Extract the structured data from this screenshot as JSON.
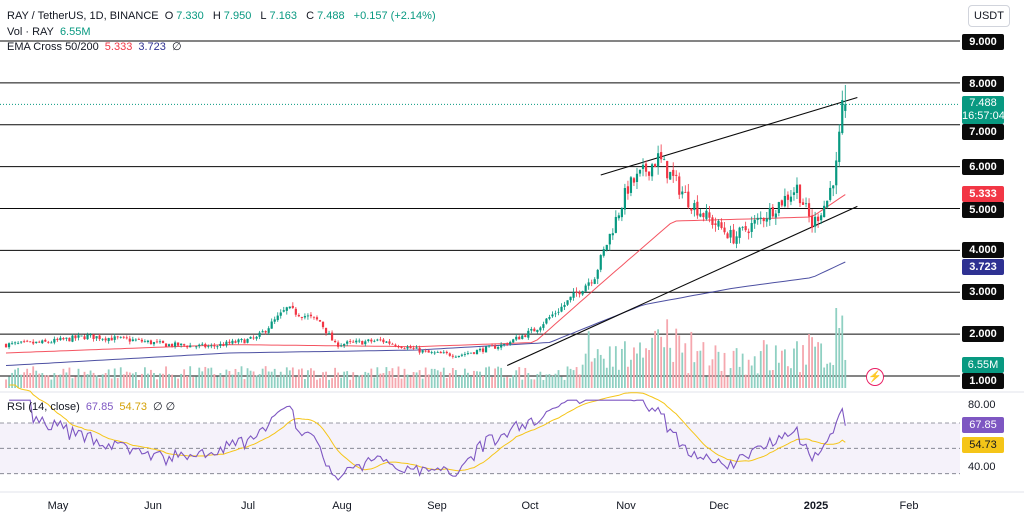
{
  "header": {
    "symbol": "RAY / TetherUS, 1D, BINANCE",
    "open_label": "O",
    "open": "7.330",
    "high_label": "H",
    "high": "7.950",
    "low_label": "L",
    "low": "7.163",
    "close_label": "C",
    "close": "7.488",
    "change": "+0.157 (+2.14%)",
    "vol_label": "Vol · RAY",
    "vol_value": "6.55M",
    "ema_label": "EMA Cross 50/200",
    "ema50": "5.333",
    "ema200": "3.723",
    "ema_extra": "∅"
  },
  "currency_button": "USDT",
  "price_axis": {
    "levels": [
      "9.000",
      "8.000",
      "7.000",
      "6.000",
      "5.000",
      "4.000",
      "3.000",
      "2.000",
      "1.000"
    ],
    "last_price": "7.488",
    "countdown": "16:57:04",
    "ema50_label": "5.333",
    "ema200_label": "3.723",
    "volume_label": "6.55M"
  },
  "rsi": {
    "label": "RSI (14, close)",
    "value": "67.85",
    "ma_value": "54.73",
    "extra": "∅ ∅",
    "axis": [
      "80.00",
      "40.00"
    ],
    "value_label": "67.85",
    "ma_label": "54.73"
  },
  "time_axis": [
    "May",
    "Jun",
    "Jul",
    "Aug",
    "Sep",
    "Oct",
    "Nov",
    "Dec",
    "2025",
    "Feb"
  ],
  "colors": {
    "up": "#089981",
    "down": "#f23645",
    "ema50": "#f23645",
    "ema200": "#2e3192",
    "rsi": "#7e57c2",
    "rsi_ma": "#f5c518",
    "level_line": "#0a0a0a",
    "trendline": "#0a0a0a"
  },
  "chart_data": {
    "type": "candlestick",
    "title": "RAY / TetherUS, 1D, BINANCE",
    "x_range": [
      "2024-04-18",
      "2025-01-21"
    ],
    "ylim": [
      1.0,
      9.3
    ],
    "horizontal_levels": [
      1,
      2,
      3,
      4,
      5,
      6,
      7,
      8,
      9
    ],
    "trendlines": [
      {
        "name": "upper channel",
        "points": [
          [
            "2024-11-01",
            5.8
          ],
          [
            "2025-01-25",
            7.65
          ]
        ]
      },
      {
        "name": "lower channel",
        "points": [
          [
            "2024-10-01",
            1.25
          ],
          [
            "2025-01-25",
            5.05
          ]
        ]
      }
    ],
    "price_path": [
      [
        "2024-04-18",
        1.75
      ],
      [
        "2024-05-01",
        1.8
      ],
      [
        "2024-05-15",
        1.95
      ],
      [
        "2024-05-31",
        1.85
      ],
      [
        "2024-06-10",
        1.75
      ],
      [
        "2024-06-25",
        1.7
      ],
      [
        "2024-07-10",
        1.9
      ],
      [
        "2024-07-20",
        2.6
      ],
      [
        "2024-07-31",
        2.3
      ],
      [
        "2024-08-05",
        1.75
      ],
      [
        "2024-08-20",
        1.85
      ],
      [
        "2024-09-05",
        1.55
      ],
      [
        "2024-09-15",
        1.5
      ],
      [
        "2024-09-30",
        1.75
      ],
      [
        "2024-10-10",
        2.1
      ],
      [
        "2024-10-20",
        2.7
      ],
      [
        "2024-10-30",
        3.4
      ],
      [
        "2024-11-10",
        5.5
      ],
      [
        "2024-11-20",
        6.2
      ],
      [
        "2024-11-30",
        5.2
      ],
      [
        "2024-12-06",
        4.8
      ],
      [
        "2024-12-15",
        4.3
      ],
      [
        "2024-12-25",
        4.8
      ],
      [
        "2025-01-05",
        5.5
      ],
      [
        "2025-01-10",
        4.6
      ],
      [
        "2025-01-15",
        5.2
      ],
      [
        "2025-01-18",
        6.0
      ],
      [
        "2025-01-20",
        7.33
      ],
      [
        "2025-01-21",
        7.488
      ]
    ],
    "series": [
      {
        "name": "EMA 50",
        "values": [
          [
            "2024-04-18",
            1.55
          ],
          [
            "2024-07-01",
            1.75
          ],
          [
            "2024-09-01",
            1.7
          ],
          [
            "2024-10-10",
            1.8
          ],
          [
            "2024-11-01",
            3.2
          ],
          [
            "2024-11-25",
            4.7
          ],
          [
            "2024-12-20",
            4.75
          ],
          [
            "2025-01-10",
            4.8
          ],
          [
            "2025-01-21",
            5.333
          ]
        ]
      },
      {
        "name": "EMA 200",
        "values": [
          [
            "2024-04-18",
            1.25
          ],
          [
            "2024-07-01",
            1.55
          ],
          [
            "2024-09-01",
            1.62
          ],
          [
            "2024-10-15",
            1.8
          ],
          [
            "2024-11-15",
            2.7
          ],
          [
            "2024-12-15",
            3.1
          ],
          [
            "2025-01-10",
            3.35
          ],
          [
            "2025-01-21",
            3.723
          ]
        ]
      }
    ],
    "volume_last": "6.55M",
    "rsi": {
      "period": 14,
      "value": 67.85,
      "ma": 54.73,
      "levels": [
        70,
        50,
        30
      ],
      "axis": [
        40,
        80
      ]
    }
  }
}
